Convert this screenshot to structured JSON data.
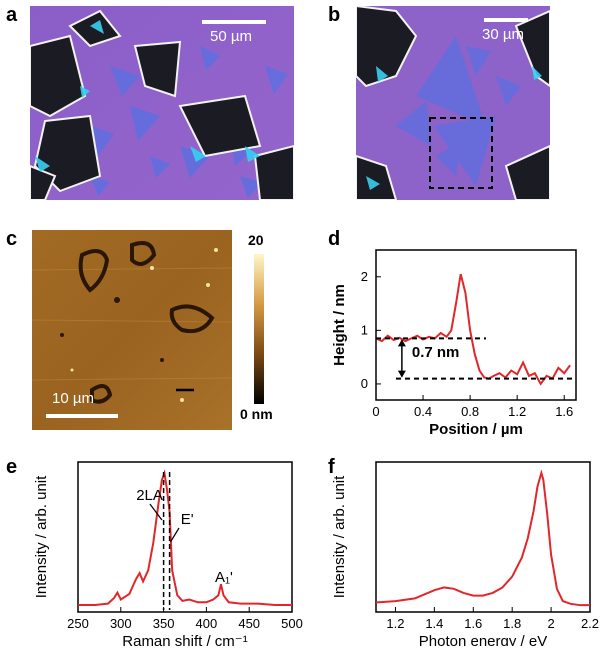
{
  "panels": {
    "a": {
      "letter": "a",
      "scalebar_label": "50 µm"
    },
    "b": {
      "letter": "b",
      "scalebar_label": "30 µm"
    },
    "c": {
      "letter": "c",
      "scalebar_label": "10 µm",
      "colorbar_max": "20",
      "colorbar_min": "0 nm"
    },
    "d": {
      "letter": "d"
    },
    "e": {
      "letter": "e"
    },
    "f": {
      "letter": "f"
    }
  },
  "colors": {
    "substrate": "#8a5fc4",
    "flake": "#5a6fe0",
    "afm_dark": "#3a2408",
    "afm_mid": "#a06a22",
    "trace": "#e0282a"
  },
  "chart_data": [
    {
      "id": "d",
      "type": "line",
      "xlabel": "Position / µm",
      "ylabel": "Height / nm",
      "xlim": [
        0,
        1.7
      ],
      "ylim": [
        -0.3,
        2.5
      ],
      "xticks": [
        0,
        0.4,
        0.8,
        1.2,
        1.6
      ],
      "xtick_labels": [
        "0",
        "0.4",
        "0.8",
        "1.2",
        "1.6"
      ],
      "yticks": [
        0,
        1,
        2
      ],
      "ytick_labels": [
        "0",
        "1",
        "2"
      ],
      "x": [
        0,
        0.05,
        0.1,
        0.15,
        0.2,
        0.25,
        0.3,
        0.35,
        0.4,
        0.45,
        0.5,
        0.55,
        0.6,
        0.64,
        0.68,
        0.72,
        0.76,
        0.8,
        0.84,
        0.88,
        0.92,
        0.96,
        1.0,
        1.05,
        1.1,
        1.15,
        1.2,
        1.25,
        1.3,
        1.35,
        1.4,
        1.45,
        1.5,
        1.55,
        1.6,
        1.65
      ],
      "y": [
        0.85,
        0.8,
        0.9,
        0.82,
        0.86,
        0.8,
        0.85,
        0.9,
        0.83,
        0.88,
        0.85,
        0.95,
        0.88,
        1.0,
        1.5,
        2.05,
        1.7,
        1.0,
        0.55,
        0.25,
        0.12,
        0.1,
        0.15,
        0.2,
        0.12,
        0.25,
        0.18,
        0.4,
        0.15,
        0.2,
        0.0,
        0.15,
        0.1,
        0.3,
        0.2,
        0.35
      ],
      "annotation": "0.7 nm",
      "ref_levels": [
        0.85,
        0.1
      ]
    },
    {
      "id": "e",
      "type": "line",
      "xlabel": "Raman shift / cm⁻¹",
      "ylabel": "Intensity / arb. unit",
      "xlim": [
        250,
        500
      ],
      "xticks": [
        250,
        300,
        350,
        400,
        450,
        500
      ],
      "xtick_labels": [
        "250",
        "300",
        "350",
        "400",
        "450",
        "500"
      ],
      "x": [
        250,
        270,
        285,
        292,
        296,
        300,
        310,
        318,
        322,
        326,
        332,
        338,
        344,
        348,
        351,
        354,
        357,
        360,
        366,
        372,
        380,
        390,
        400,
        408,
        414,
        417,
        420,
        426,
        440,
        460,
        480,
        500
      ],
      "y": [
        0.05,
        0.05,
        0.06,
        0.1,
        0.14,
        0.09,
        0.13,
        0.24,
        0.28,
        0.22,
        0.3,
        0.5,
        0.78,
        0.95,
        1.0,
        0.88,
        0.72,
        0.3,
        0.12,
        0.08,
        0.09,
        0.07,
        0.07,
        0.09,
        0.12,
        0.2,
        0.12,
        0.07,
        0.06,
        0.06,
        0.05,
        0.05
      ],
      "annotations": [
        "2LA",
        "E'",
        "A₁'"
      ],
      "dashed_lines_x": [
        350,
        357
      ]
    },
    {
      "id": "f",
      "type": "line",
      "xlabel": "Photon energy / eV",
      "ylabel": "Intensity / arb. unit",
      "xlim": [
        1.1,
        2.2
      ],
      "xticks": [
        1.2,
        1.4,
        1.6,
        1.8,
        2.0,
        2.2
      ],
      "xtick_labels": [
        "1.2",
        "1.4",
        "1.6",
        "1.8",
        "2",
        "2.2"
      ],
      "x": [
        1.1,
        1.2,
        1.3,
        1.35,
        1.4,
        1.45,
        1.5,
        1.55,
        1.6,
        1.65,
        1.7,
        1.75,
        1.8,
        1.85,
        1.88,
        1.91,
        1.93,
        1.95,
        1.96,
        1.98,
        2.0,
        2.03,
        2.06,
        2.1,
        2.15,
        2.2
      ],
      "y": [
        0.05,
        0.06,
        0.08,
        0.11,
        0.14,
        0.16,
        0.15,
        0.12,
        0.1,
        0.1,
        0.12,
        0.16,
        0.24,
        0.38,
        0.52,
        0.72,
        0.9,
        1.0,
        0.95,
        0.7,
        0.4,
        0.15,
        0.06,
        0.04,
        0.03,
        0.03
      ]
    }
  ]
}
